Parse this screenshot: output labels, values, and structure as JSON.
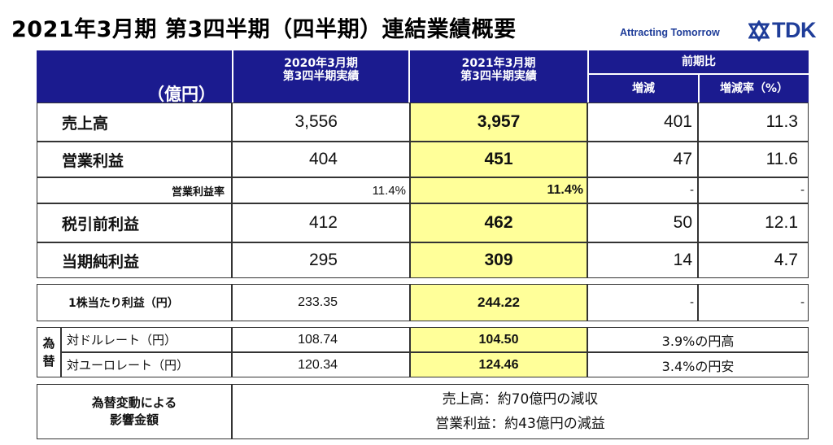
{
  "header": {
    "title": "2021年3月期 第3四半期（四半期）連結業績概要",
    "tagline": "Attracting Tomorrow",
    "brand": "TDK",
    "brand_color": "#1f3d99"
  },
  "table_header": {
    "unit": "（億円）",
    "prev_line1": "2020年3月期",
    "prev_line2": "第3四半期実績",
    "cur_line1": "2021年3月期",
    "cur_line2": "第3四半期実績",
    "comparison": "前期比",
    "change": "増減",
    "change_rate": "増減率（%）",
    "header_color": "#1b1b8f",
    "highlight_color": "#ffff99"
  },
  "rows": [
    {
      "label": "売上高",
      "prev": "3,556",
      "cur": "3,957",
      "change": "401",
      "rate": "11.3"
    },
    {
      "label": "営業利益",
      "prev": "404",
      "cur": "451",
      "change": "47",
      "rate": "11.6"
    },
    {
      "label": "営業利益率",
      "prev": "11.4%",
      "cur": "11.4%",
      "change": "-",
      "rate": "-"
    },
    {
      "label": "税引前利益",
      "prev": "412",
      "cur": "462",
      "change": "50",
      "rate": "12.1"
    },
    {
      "label": "当期純利益",
      "prev": "295",
      "cur": "309",
      "change": "14",
      "rate": "4.7"
    }
  ],
  "eps": {
    "label": "1株当たり利益（円）",
    "prev": "233.35",
    "cur": "244.22",
    "change": "-",
    "rate": "-"
  },
  "fx": {
    "side_label_1": "為",
    "side_label_2": "替",
    "usd": {
      "label": "対ドルレート（円）",
      "prev": "108.74",
      "cur": "104.50",
      "note": "3.9%の円高"
    },
    "eur": {
      "label": "対ユーロレート（円）",
      "prev": "120.34",
      "cur": "124.46",
      "note": "3.4%の円安"
    }
  },
  "impact": {
    "label_line1": "為替変動による",
    "label_line2": "影響金額",
    "line1": "売上高：約70億円の減収",
    "line2": "営業利益：約43億円の減益"
  }
}
